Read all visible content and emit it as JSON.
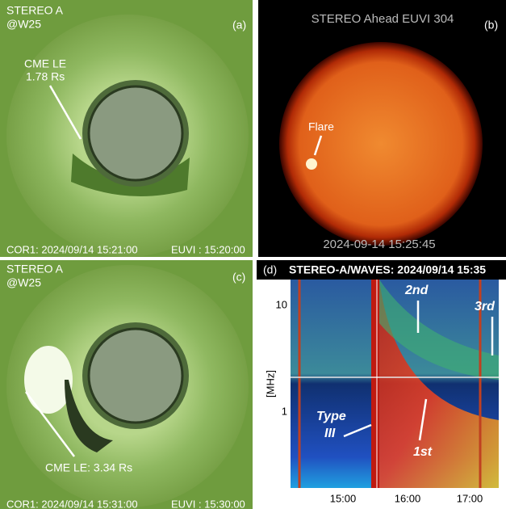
{
  "panels": [
    {
      "label": "(a)",
      "observatory": "STEREO A",
      "position": "@W25",
      "annotation": [
        "CME LE",
        "1.78 Rs"
      ],
      "footer_left": "COR1: 2024/09/14 15:21:00",
      "footer_right": "EUVI : 15:20:00"
    },
    {
      "label": "(b)",
      "title": "STEREO Ahead EUVI 304",
      "annotation": "Flare",
      "footer": "2024-09-14 15:25:45"
    },
    {
      "label": "(c)",
      "observatory": "STEREO A",
      "position": "@W25",
      "annotation": "CME LE: 3.34 Rs",
      "footer_left": "COR1: 2024/09/14 15:31:00",
      "footer_right": "EUVI : 15:30:00"
    },
    {
      "label": "(d)",
      "title": "STEREO-A/WAVES: 2024/09/14 15:35",
      "y_axis_label": "[MHz]",
      "yticks": [
        "10",
        "1"
      ],
      "xticks": [
        "15:00",
        "16:00",
        "17:00"
      ],
      "annotations": [
        "2nd",
        "3rd",
        "Type",
        "III",
        "1st"
      ]
    }
  ]
}
